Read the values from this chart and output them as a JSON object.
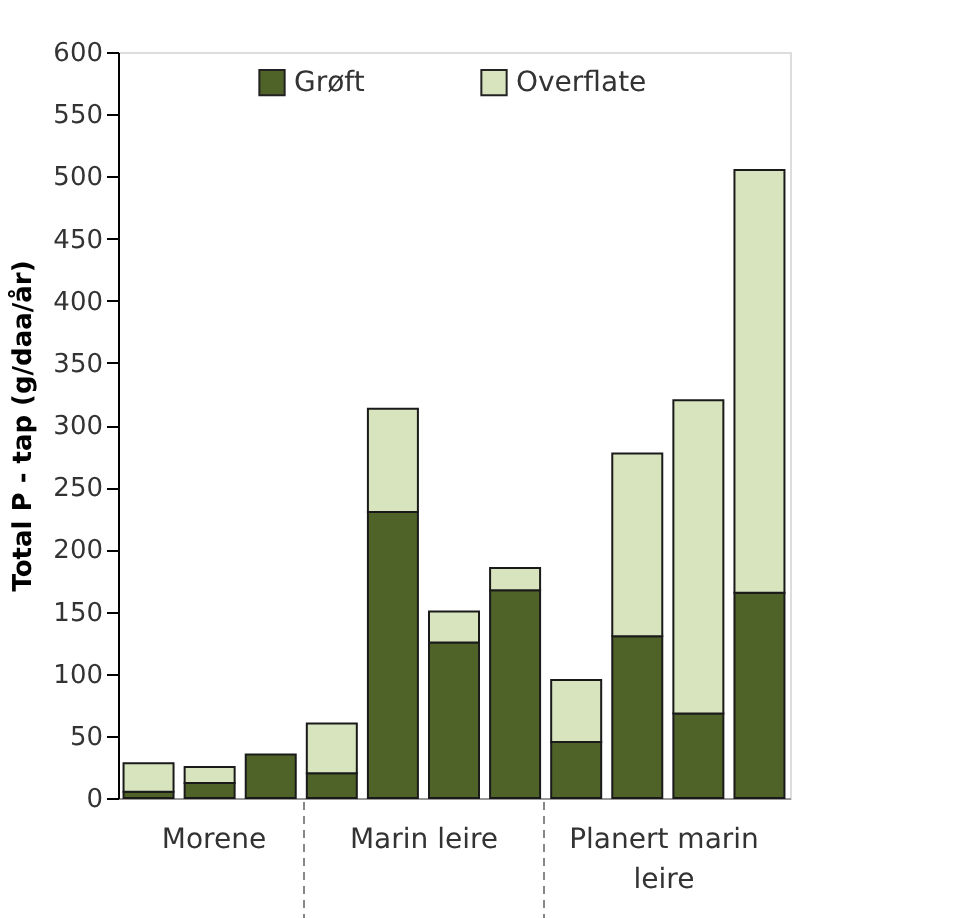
{
  "chart_data": {
    "type": "bar",
    "stacked": true,
    "ylabel": "Total P - tap (g/daa/år)",
    "categories": [
      null,
      null,
      null,
      null,
      null,
      null,
      null,
      null,
      null,
      null,
      null
    ],
    "series": [
      {
        "name": "Grøft",
        "color": "#4f6228",
        "values": [
          5,
          12,
          35,
          20,
          230,
          125,
          167,
          45,
          130,
          68,
          165
        ]
      },
      {
        "name": "Overflate",
        "color": "#d7e4bd",
        "values": [
          23,
          13,
          0,
          40,
          83,
          25,
          18,
          50,
          147,
          252,
          340
        ]
      }
    ],
    "ylim": [
      0,
      600
    ],
    "yticks": [
      0,
      50,
      100,
      150,
      200,
      250,
      300,
      350,
      400,
      450,
      500,
      550,
      600
    ],
    "grid": false,
    "legend": "top",
    "tick_labels": "y",
    "annotations": [
      "Morene",
      "Marin leire",
      "Planert marin leire"
    ]
  }
}
